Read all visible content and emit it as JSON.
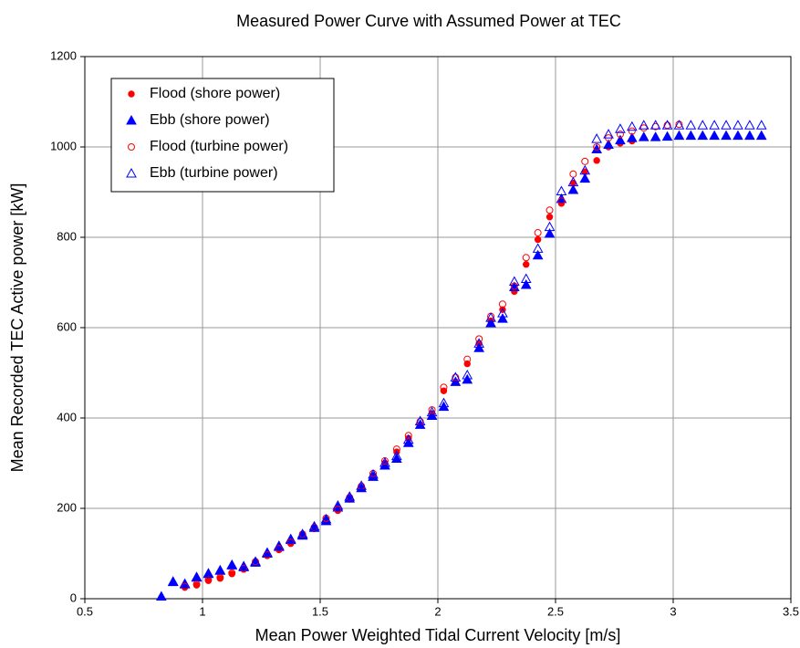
{
  "chart_data": {
    "type": "scatter",
    "title": "Measured Power Curve with Assumed Power at TEC",
    "x_label": "Mean Power Weighted Tidal Current Velocity [m/s]",
    "y_label": "Mean Recorded TEC Active power [kW]",
    "xlim": [
      0.5,
      3.5
    ],
    "xticks": [
      0.5,
      1,
      1.5,
      2,
      2.5,
      3,
      3.5
    ],
    "ylim": [
      0,
      1200
    ],
    "yticks": [
      0,
      200,
      400,
      600,
      800,
      1000,
      1200
    ],
    "grid": true,
    "legend": "upper left",
    "x": [
      0.825,
      0.875,
      0.925,
      0.975,
      1.025,
      1.075,
      1.125,
      1.175,
      1.225,
      1.275,
      1.325,
      1.375,
      1.425,
      1.475,
      1.525,
      1.575,
      1.625,
      1.675,
      1.725,
      1.775,
      1.825,
      1.875,
      1.925,
      1.975,
      2.025,
      2.075,
      2.125,
      2.175,
      2.225,
      2.275,
      2.325,
      2.375,
      2.425,
      2.475,
      2.525,
      2.575,
      2.625,
      2.675,
      2.725,
      2.775,
      2.825,
      2.875,
      2.925,
      2.975,
      3.025,
      3.075,
      3.125,
      3.175,
      3.225,
      3.275,
      3.325,
      3.375
    ],
    "series": [
      {
        "name": "Flood (shore power)",
        "color": "#ff0000",
        "marker": "circle",
        "filled": true,
        "values": [
          null,
          null,
          25,
          30,
          40,
          45,
          55,
          65,
          80,
          95,
          108,
          122,
          140,
          155,
          175,
          195,
          220,
          245,
          272,
          300,
          325,
          355,
          385,
          410,
          460,
          480,
          520,
          565,
          615,
          640,
          680,
          740,
          795,
          845,
          875,
          920,
          945,
          970,
          1000,
          1008,
          1013,
          null,
          null,
          null,
          null,
          null,
          null,
          null,
          null,
          null,
          null,
          null
        ]
      },
      {
        "name": "Ebb (shore power)",
        "color": "#0000ff",
        "marker": "triangle",
        "filled": true,
        "values": [
          5,
          37,
          32,
          47,
          55,
          62,
          74,
          70,
          80,
          100,
          115,
          130,
          140,
          157,
          172,
          202,
          222,
          245,
          270,
          295,
          310,
          345,
          385,
          405,
          425,
          480,
          485,
          555,
          610,
          620,
          690,
          695,
          760,
          808,
          885,
          905,
          930,
          995,
          1005,
          1015,
          1020,
          1022,
          1022,
          1023,
          1025,
          1025,
          1025,
          1025,
          1025,
          1025,
          1025,
          1025
        ]
      },
      {
        "name": "Flood (turbine power)",
        "color": "#ff0000",
        "marker": "circle",
        "filled": false,
        "values": [
          null,
          null,
          27,
          32,
          42,
          47,
          57,
          67,
          82,
          97,
          111,
          125,
          143,
          158,
          178,
          198,
          224,
          249,
          277,
          305,
          331,
          361,
          392,
          418,
          468,
          490,
          530,
          575,
          625,
          652,
          692,
          755,
          810,
          860,
          880,
          940,
          968,
          1000,
          1020,
          1028,
          1035,
          1042,
          1045,
          1048,
          1050,
          null,
          null,
          null,
          null,
          null,
          null,
          null
        ]
      },
      {
        "name": "Ebb (turbine power)",
        "color": "#0000ff",
        "marker": "triangle",
        "filled": false,
        "values": [
          null,
          38,
          33,
          48,
          56,
          63,
          75,
          72,
          82,
          102,
          117,
          132,
          143,
          160,
          176,
          206,
          226,
          250,
          275,
          301,
          316,
          352,
          393,
          413,
          433,
          490,
          495,
          565,
          622,
          632,
          702,
          708,
          775,
          823,
          902,
          922,
          948,
          1018,
          1028,
          1040,
          1045,
          1048,
          1048,
          1048,
          1048,
          1048,
          1048,
          1048,
          1048,
          1048,
          1048,
          1048
        ]
      }
    ]
  }
}
